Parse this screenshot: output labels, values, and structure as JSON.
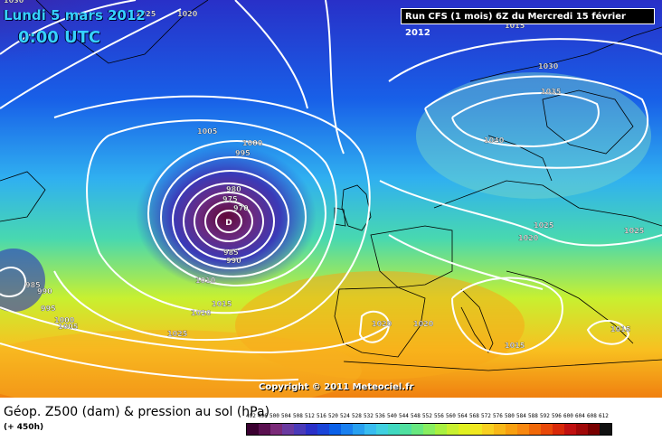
{
  "header": {
    "date": "Lundi 5 mars 2012",
    "time": "0:00 UTC",
    "run": "Run CFS (1 mois) 6Z du Mercredi 15 février 2012"
  },
  "copyright": "Copyright © 2011 Meteociel.fr",
  "caption": {
    "title": "Géop. Z500 (dam) & pression au sol (hPa)",
    "lead": "(+ 450h)"
  },
  "low_center": "D",
  "isobar_labels": [
    "1030",
    "1025",
    "1020",
    "1015",
    "1005",
    "1000",
    "995",
    "980",
    "975",
    "970",
    "985",
    "990",
    "985",
    "990",
    "995",
    "1000",
    "1005",
    "1010",
    "1015",
    "1020",
    "1025",
    "1030",
    "1035",
    "1040",
    "1025",
    "1020",
    "1025",
    "1020",
    "1020",
    "1015",
    "1015"
  ],
  "scale": {
    "ticks": [
      "492",
      "496",
      "500",
      "504",
      "508",
      "512",
      "516",
      "520",
      "524",
      "528",
      "532",
      "536",
      "540",
      "544",
      "548",
      "552",
      "556",
      "560",
      "564",
      "568",
      "572",
      "576",
      "580",
      "584",
      "588",
      "592",
      "596",
      "600",
      "604",
      "608",
      "612"
    ],
    "colors": [
      "#3a0030",
      "#5a1050",
      "#7a2a78",
      "#6a3aa0",
      "#4a3ab8",
      "#2a30c8",
      "#1a44d8",
      "#0a60e8",
      "#1a80f0",
      "#28a0f0",
      "#38bcf0",
      "#40d0e0",
      "#40d8c0",
      "#50e0a0",
      "#68e880",
      "#88ee60",
      "#a8f040",
      "#c8f030",
      "#e0f020",
      "#f0e820",
      "#f8d020",
      "#f8b818",
      "#f8a010",
      "#f88810",
      "#f06808",
      "#e84808",
      "#d82808",
      "#c01010",
      "#a00808",
      "#780000",
      "#101010"
    ]
  }
}
